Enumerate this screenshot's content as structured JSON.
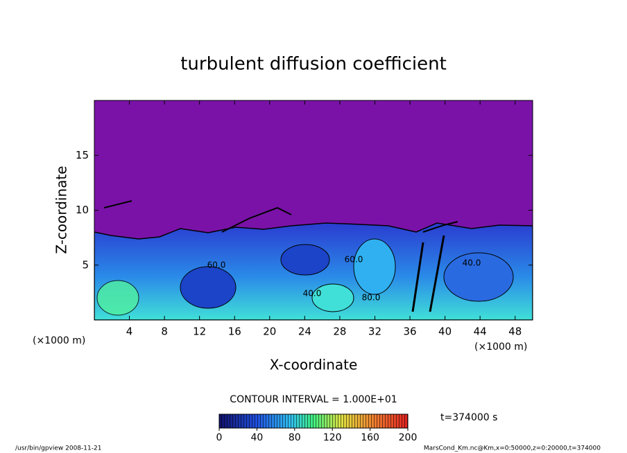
{
  "chart_data": {
    "type": "contour",
    "title": "turbulent diffusion coefficient",
    "xlabel": "X-coordinate",
    "ylabel": "Z-coordinate",
    "x_unit": "(×1000 m)",
    "y_unit": "(×1000 m)",
    "xlim": [
      0,
      50
    ],
    "xticks": [
      4,
      8,
      12,
      16,
      20,
      24,
      28,
      32,
      36,
      40,
      44,
      48
    ],
    "ylim": [
      0,
      20
    ],
    "yticks": [
      5,
      10,
      15
    ],
    "contour_interval": "CONTOUR INTERVAL = 1.000E+01",
    "contour_labels": [
      "60.0",
      "40.0",
      "60.0",
      "40.0",
      "80.0"
    ],
    "time_label": "t=374000 s",
    "colorbar": {
      "lim": [
        0,
        200
      ],
      "ticks": [
        0,
        40,
        80,
        120,
        160,
        200
      ]
    },
    "footer_left": "/usr/bin/gpview   2008-11-21",
    "footer_right": "MarsCond_Km.nc@Km,x=0:50000,z=0:20000,t=374000"
  }
}
